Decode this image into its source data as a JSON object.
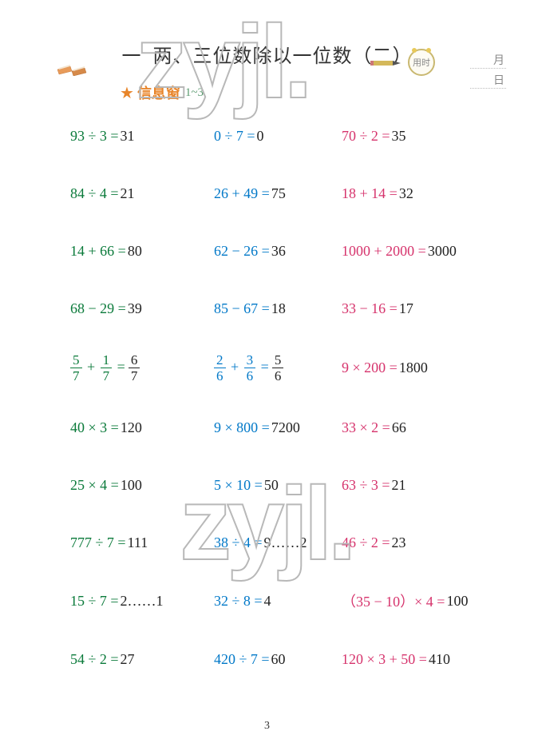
{
  "header": {
    "chapter_num": "一",
    "title": "两、三位数除以一位数（二）",
    "clock_label": "用时",
    "month_label": "月",
    "day_label": "日"
  },
  "subtitle": {
    "label": "信息窗",
    "range": "1~3"
  },
  "colors": {
    "col1": "#0a7a3a",
    "col2": "#0078c8",
    "col3": "#d6336c",
    "answer": "#222222",
    "accent": "#e8852a"
  },
  "rows": [
    [
      {
        "q": "93 ÷ 3 =",
        "a": "31"
      },
      {
        "q": "0 ÷ 7 =",
        "a": "0"
      },
      {
        "q": "70 ÷ 2 =",
        "a": "35"
      }
    ],
    [
      {
        "q": "84 ÷ 4 =",
        "a": "21"
      },
      {
        "q": "26 + 49 =",
        "a": "75"
      },
      {
        "q": "18 + 14 =",
        "a": "32"
      }
    ],
    [
      {
        "q": "14 + 66 =",
        "a": "80"
      },
      {
        "q": "62 − 26 =",
        "a": "36"
      },
      {
        "q": "1000 + 2000 =",
        "a": "3000"
      }
    ],
    [
      {
        "q": "68 − 29 =",
        "a": "39"
      },
      {
        "q": "85 − 67 =",
        "a": "18"
      },
      {
        "q": "33 − 16 =",
        "a": "17"
      }
    ],
    [
      {
        "frac": {
          "n1": "5",
          "d1": "7",
          "n2": "1",
          "d2": "7",
          "an": "6",
          "ad": "7"
        }
      },
      {
        "frac": {
          "n1": "2",
          "d1": "6",
          "n2": "3",
          "d2": "6",
          "an": "5",
          "ad": "6"
        }
      },
      {
        "q": "9 × 200 =",
        "a": "1800"
      }
    ],
    [
      {
        "q": "40 × 3 =",
        "a": "120"
      },
      {
        "q": "9 × 800 =",
        "a": "7200"
      },
      {
        "q": "33 × 2 =",
        "a": "66"
      }
    ],
    [
      {
        "q": "25 × 4 =",
        "a": "100"
      },
      {
        "q": "5 × 10 =",
        "a": "50"
      },
      {
        "q": "63 ÷ 3 =",
        "a": "21"
      }
    ],
    [
      {
        "q": "777 ÷ 7 =",
        "a": "111"
      },
      {
        "q": "38 ÷ 4 =",
        "a": "9……2"
      },
      {
        "q": "46 ÷ 2 =",
        "a": "23"
      }
    ],
    [
      {
        "q": "15 ÷ 7 =",
        "a": "2……1"
      },
      {
        "q": "32 ÷ 8 =",
        "a": "4"
      },
      {
        "q": "（35 − 10）× 4 =",
        "a": "100"
      }
    ],
    [
      {
        "q": "54 ÷ 2 =",
        "a": "27"
      },
      {
        "q": "420 ÷ 7 =",
        "a": "60"
      },
      {
        "q": "120 × 3 + 50 =",
        "a": "410"
      }
    ]
  ],
  "page_number": "3",
  "watermark": "zyjl."
}
